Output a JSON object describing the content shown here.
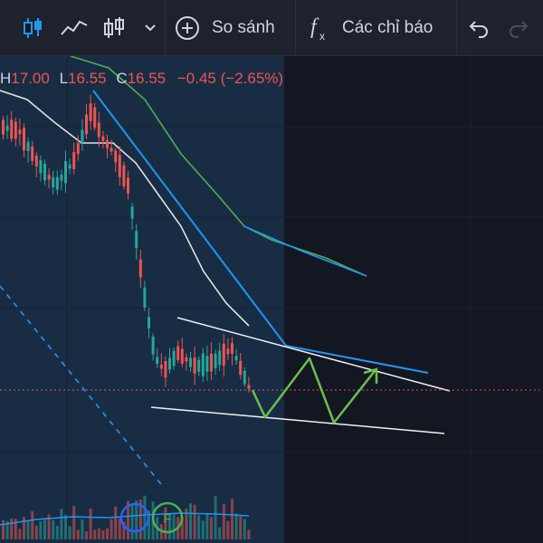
{
  "toolbar": {
    "compare_label": "So sánh",
    "indicators_label": "Các chỉ báo"
  },
  "legend": {
    "h_label": "H",
    "h_value": "17.00",
    "l_label": "L",
    "l_value": "16.55",
    "c_label": "C",
    "c_value": "16.55",
    "change": "−0.45 (−2.65%)"
  },
  "colors": {
    "background": "#131722",
    "toolbar": "#1e222d",
    "up": "#26a69a",
    "down": "#ef5350",
    "trendline": "#2196f3",
    "ma_green": "#4caf50",
    "ma_white": "#e0e0e0",
    "projection": "#6abf4b"
  },
  "icons": [
    "candlestick-icon",
    "line-chart-icon",
    "bar-chart-icon",
    "chevron-down-icon",
    "plus-circle-icon",
    "fx-icon",
    "undo-icon",
    "redo-icon"
  ]
}
